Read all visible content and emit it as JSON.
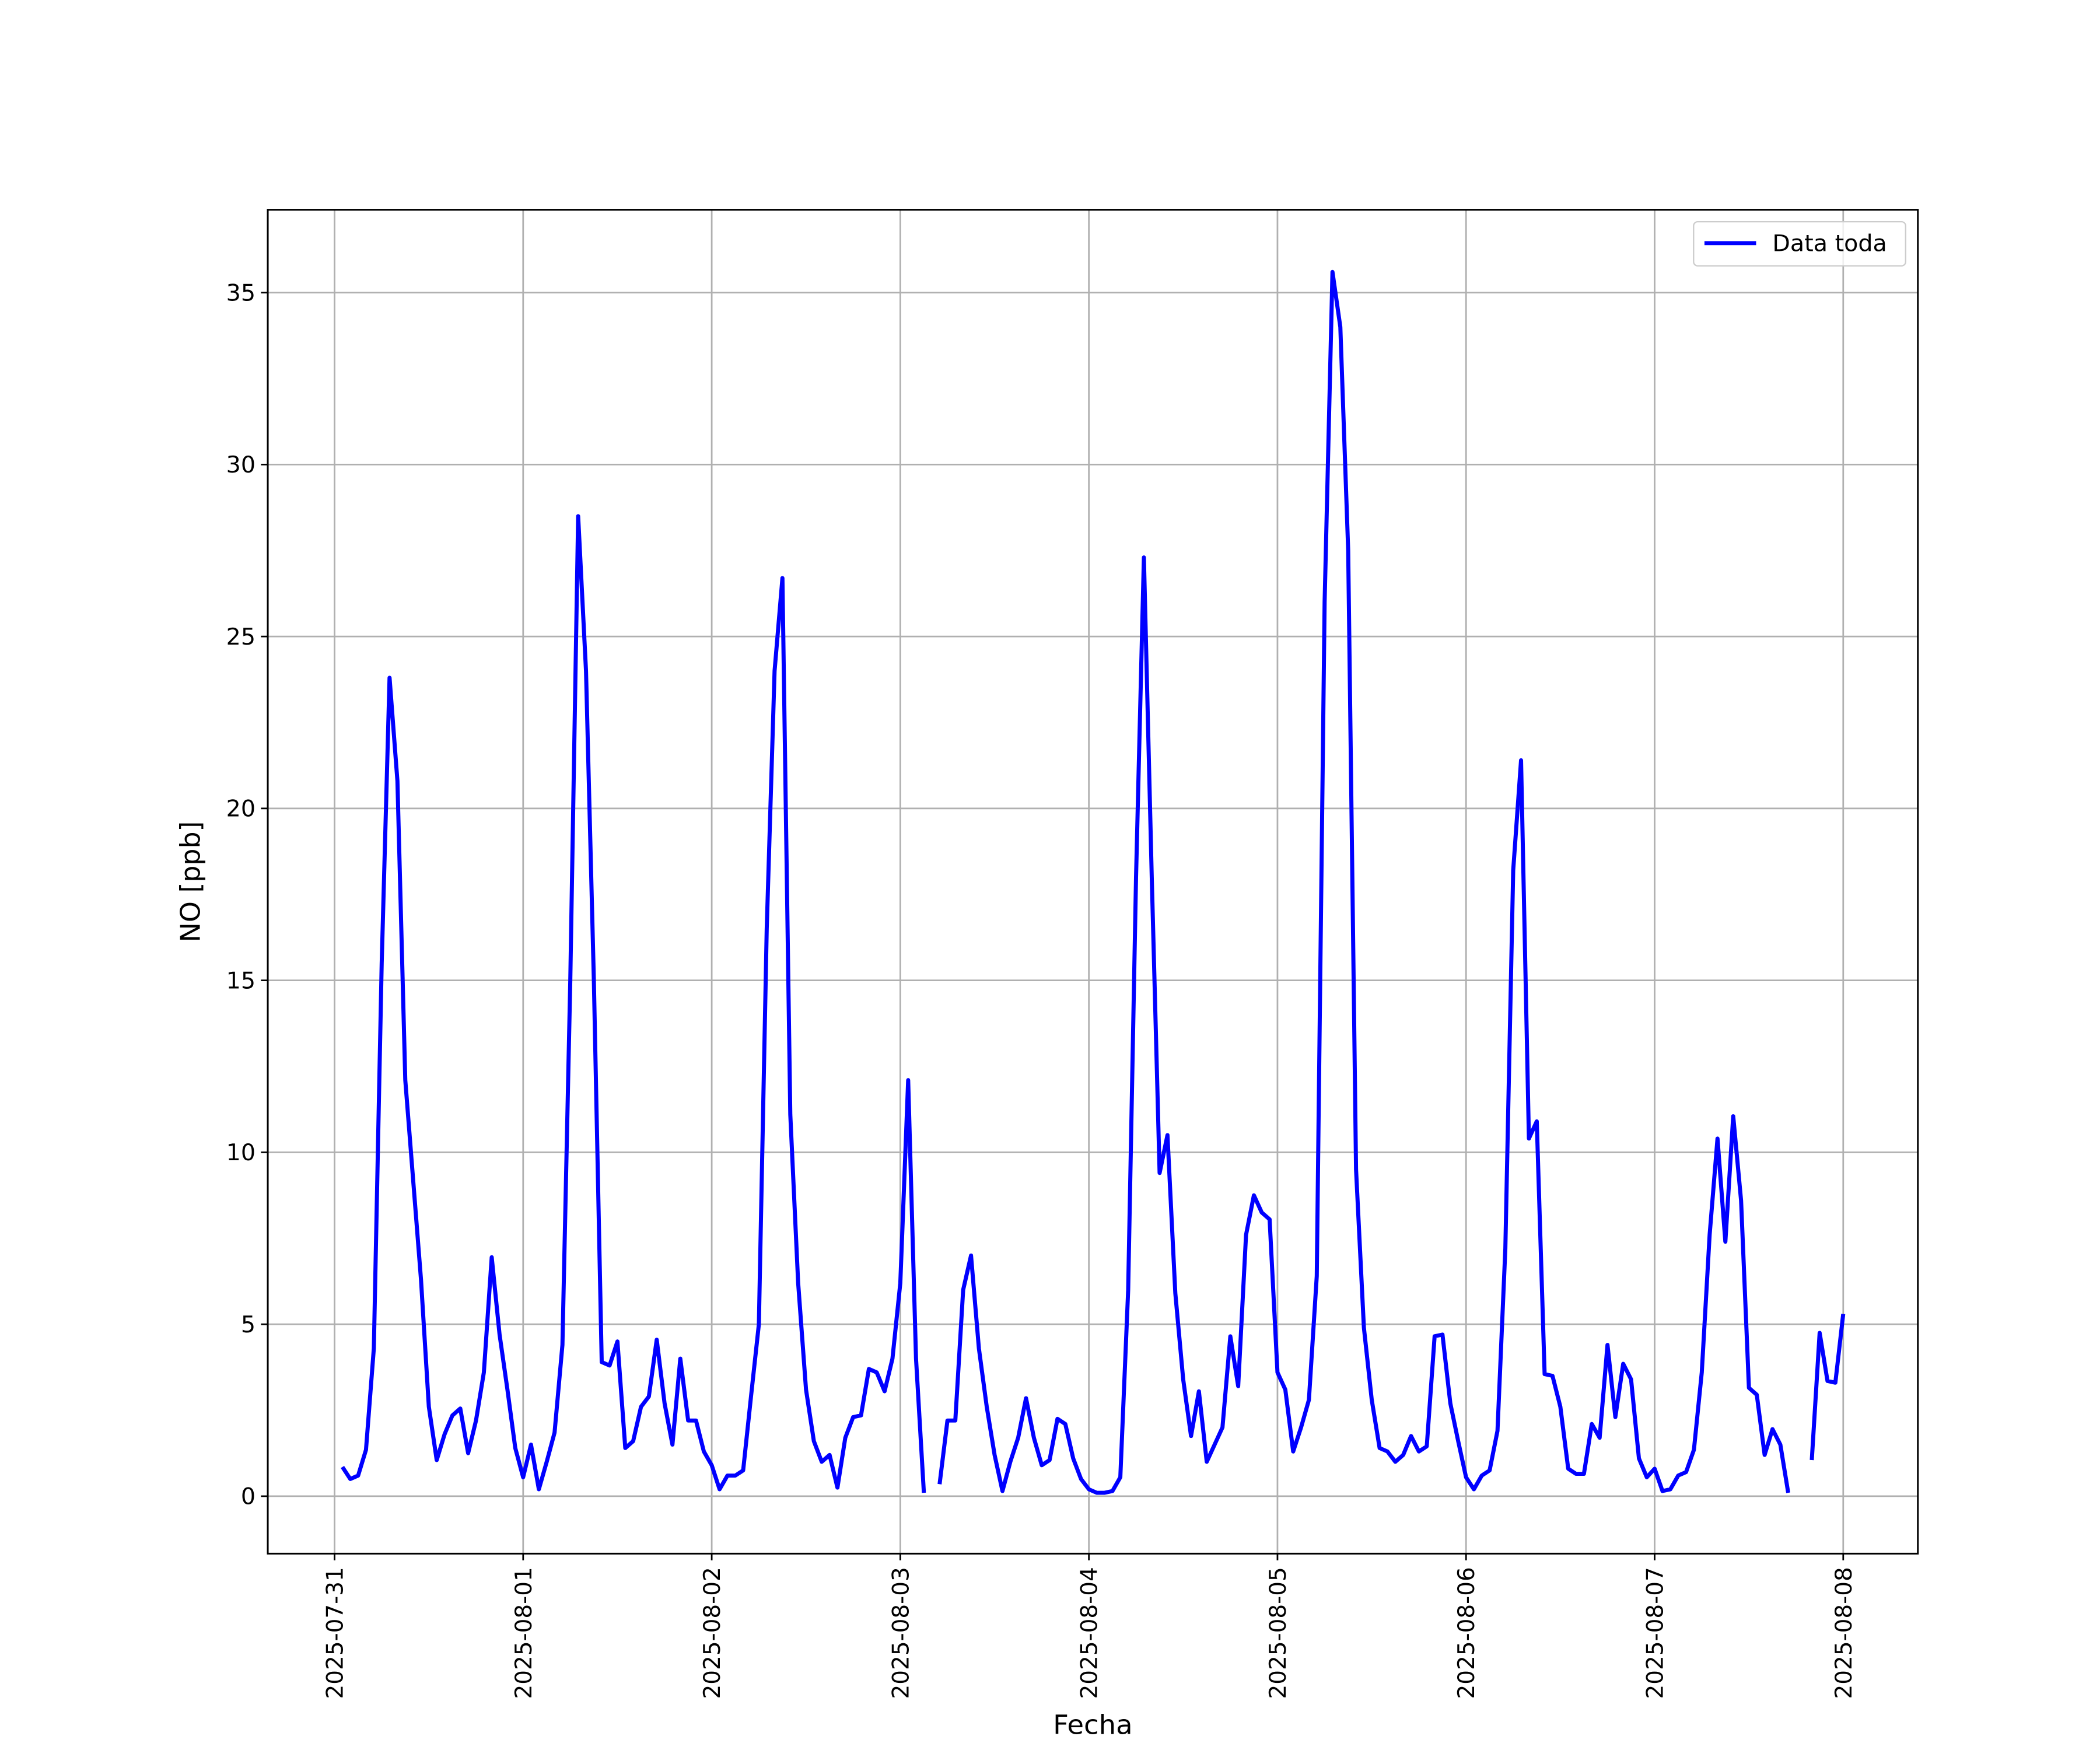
{
  "chart_data": {
    "type": "line",
    "xlabel": "Fecha",
    "ylabel": "NO [ppb]",
    "x": [
      "2025-07-31 01:00",
      "2025-07-31 02:00",
      "2025-07-31 03:00",
      "2025-07-31 04:00",
      "2025-07-31 05:00",
      "2025-07-31 06:00",
      "2025-07-31 07:00",
      "2025-07-31 08:00",
      "2025-07-31 09:00",
      "2025-07-31 10:00",
      "2025-07-31 11:00",
      "2025-07-31 12:00",
      "2025-07-31 13:00",
      "2025-07-31 14:00",
      "2025-07-31 15:00",
      "2025-07-31 16:00",
      "2025-07-31 17:00",
      "2025-07-31 18:00",
      "2025-07-31 19:00",
      "2025-07-31 20:00",
      "2025-07-31 21:00",
      "2025-07-31 22:00",
      "2025-07-31 23:00",
      "2025-08-01 00:00",
      "2025-08-01 01:00",
      "2025-08-01 02:00",
      "2025-08-01 03:00",
      "2025-08-01 04:00",
      "2025-08-01 05:00",
      "2025-08-01 06:00",
      "2025-08-01 07:00",
      "2025-08-01 08:00",
      "2025-08-01 09:00",
      "2025-08-01 10:00",
      "2025-08-01 11:00",
      "2025-08-01 12:00",
      "2025-08-01 13:00",
      "2025-08-01 14:00",
      "2025-08-01 15:00",
      "2025-08-01 16:00",
      "2025-08-01 17:00",
      "2025-08-01 18:00",
      "2025-08-01 19:00",
      "2025-08-01 20:00",
      "2025-08-01 21:00",
      "2025-08-01 22:00",
      "2025-08-01 23:00",
      "2025-08-02 00:00",
      "2025-08-02 01:00",
      "2025-08-02 02:00",
      "2025-08-02 03:00",
      "2025-08-02 04:00",
      "2025-08-02 05:00",
      "2025-08-02 06:00",
      "2025-08-02 07:00",
      "2025-08-02 08:00",
      "2025-08-02 09:00",
      "2025-08-02 10:00",
      "2025-08-02 11:00",
      "2025-08-02 12:00",
      "2025-08-02 13:00",
      "2025-08-02 14:00",
      "2025-08-02 15:00",
      "2025-08-02 16:00",
      "2025-08-02 17:00",
      "2025-08-02 18:00",
      "2025-08-02 19:00",
      "2025-08-02 20:00",
      "2025-08-02 21:00",
      "2025-08-02 22:00",
      "2025-08-02 23:00",
      "2025-08-03 00:00",
      "2025-08-03 01:00",
      "2025-08-03 02:00",
      "2025-08-03 03:00",
      "2025-08-03 04:00",
      "2025-08-03 05:00",
      "2025-08-03 06:00",
      "2025-08-03 07:00",
      "2025-08-03 08:00",
      "2025-08-03 09:00",
      "2025-08-03 10:00",
      "2025-08-03 11:00",
      "2025-08-03 12:00",
      "2025-08-03 13:00",
      "2025-08-03 14:00",
      "2025-08-03 15:00",
      "2025-08-03 16:00",
      "2025-08-03 17:00",
      "2025-08-03 18:00",
      "2025-08-03 19:00",
      "2025-08-03 20:00",
      "2025-08-03 21:00",
      "2025-08-03 22:00",
      "2025-08-03 23:00",
      "2025-08-04 00:00",
      "2025-08-04 01:00",
      "2025-08-04 02:00",
      "2025-08-04 03:00",
      "2025-08-04 04:00",
      "2025-08-04 05:00",
      "2025-08-04 06:00",
      "2025-08-04 07:00",
      "2025-08-04 08:00",
      "2025-08-04 09:00",
      "2025-08-04 10:00",
      "2025-08-04 11:00",
      "2025-08-04 12:00",
      "2025-08-04 13:00",
      "2025-08-04 14:00",
      "2025-08-04 15:00",
      "2025-08-04 16:00",
      "2025-08-04 17:00",
      "2025-08-04 18:00",
      "2025-08-04 19:00",
      "2025-08-04 20:00",
      "2025-08-04 21:00",
      "2025-08-04 22:00",
      "2025-08-04 23:00",
      "2025-08-05 00:00",
      "2025-08-05 01:00",
      "2025-08-05 02:00",
      "2025-08-05 03:00",
      "2025-08-05 04:00",
      "2025-08-05 05:00",
      "2025-08-05 06:00",
      "2025-08-05 07:00",
      "2025-08-05 08:00",
      "2025-08-05 09:00",
      "2025-08-05 10:00",
      "2025-08-05 11:00",
      "2025-08-05 12:00",
      "2025-08-05 13:00",
      "2025-08-05 14:00",
      "2025-08-05 15:00",
      "2025-08-05 16:00",
      "2025-08-05 17:00",
      "2025-08-05 18:00",
      "2025-08-05 19:00",
      "2025-08-05 20:00",
      "2025-08-05 21:00",
      "2025-08-05 22:00",
      "2025-08-05 23:00",
      "2025-08-06 00:00",
      "2025-08-06 01:00",
      "2025-08-06 02:00",
      "2025-08-06 03:00",
      "2025-08-06 04:00",
      "2025-08-06 05:00",
      "2025-08-06 06:00",
      "2025-08-06 07:00",
      "2025-08-06 08:00",
      "2025-08-06 09:00",
      "2025-08-06 10:00",
      "2025-08-06 11:00",
      "2025-08-06 12:00",
      "2025-08-06 13:00",
      "2025-08-06 14:00",
      "2025-08-06 15:00",
      "2025-08-06 16:00",
      "2025-08-06 17:00",
      "2025-08-06 18:00",
      "2025-08-06 19:00",
      "2025-08-06 20:00",
      "2025-08-06 21:00",
      "2025-08-06 22:00",
      "2025-08-06 23:00",
      "2025-08-07 00:00",
      "2025-08-07 01:00",
      "2025-08-07 02:00",
      "2025-08-07 03:00",
      "2025-08-07 04:00",
      "2025-08-07 05:00",
      "2025-08-07 06:00",
      "2025-08-07 07:00",
      "2025-08-07 08:00",
      "2025-08-07 09:00",
      "2025-08-07 10:00",
      "2025-08-07 11:00",
      "2025-08-07 12:00",
      "2025-08-07 13:00",
      "2025-08-07 14:00",
      "2025-08-07 15:00",
      "2025-08-07 16:00",
      "2025-08-07 17:00",
      "2025-08-07 18:00",
      "2025-08-07 19:00",
      "2025-08-07 20:00",
      "2025-08-07 21:00",
      "2025-08-07 22:00",
      "2025-08-07 23:00",
      "2025-08-08 00:00"
    ],
    "series": [
      {
        "name": "Data toda",
        "color": "#0000ff",
        "values": [
          0.85,
          0.5,
          0.6,
          1.35,
          4.3,
          15.5,
          23.8,
          20.8,
          12.1,
          9.2,
          6.3,
          2.6,
          1.05,
          1.8,
          2.35,
          2.55,
          1.25,
          2.2,
          3.6,
          6.95,
          4.7,
          3.1,
          1.4,
          0.55,
          1.5,
          0.2,
          1.0,
          1.85,
          4.4,
          15,
          28.5,
          24,
          15,
          3.9,
          3.8,
          4.5,
          1.4,
          1.6,
          2.6,
          2.9,
          4.55,
          2.7,
          1.5,
          4.0,
          2.2,
          2.2,
          1.3,
          0.9,
          0.2,
          0.6,
          0.6,
          0.75,
          2.9,
          5.0,
          16.5,
          24,
          26.7,
          11.1,
          6.2,
          3.1,
          1.6,
          1.0,
          1.2,
          0.25,
          1.7,
          2.3,
          2.35,
          3.7,
          3.6,
          3.05,
          4.0,
          6.2,
          12.1,
          4.0,
          0.1,
          null,
          0.35,
          2.2,
          2.2,
          6.0,
          7.0,
          4.3,
          2.6,
          1.2,
          0.15,
          1.0,
          1.7,
          2.85,
          1.7,
          0.9,
          1.05,
          2.25,
          2.1,
          1.1,
          0.5,
          0.2,
          0.1,
          0.1,
          0.15,
          0.55,
          6.0,
          18,
          27.3,
          18,
          9.4,
          10.5,
          5.9,
          3.4,
          1.75,
          3.05,
          1.0,
          1.5,
          2.0,
          4.65,
          3.2,
          7.6,
          8.75,
          8.25,
          8.05,
          3.6,
          3.1,
          1.3,
          2.0,
          2.8,
          6.4,
          26,
          35.6,
          34,
          27.5,
          9.5,
          4.9,
          2.8,
          1.4,
          1.3,
          1.0,
          1.2,
          1.75,
          1.3,
          1.45,
          4.65,
          4.7,
          2.7,
          1.6,
          0.55,
          0.2,
          0.6,
          0.75,
          1.9,
          7.2,
          18.2,
          21.4,
          10.4,
          10.9,
          3.55,
          3.5,
          2.6,
          0.8,
          0.65,
          0.65,
          2.1,
          1.7,
          4.4,
          2.3,
          3.85,
          3.4,
          1.1,
          0.55,
          0.8,
          0.15,
          0.2,
          0.6,
          0.7,
          1.35,
          3.6,
          7.6,
          10.4,
          7.4,
          11.05,
          8.6,
          3.15,
          2.95,
          1.2,
          1.95,
          1.5,
          0.1,
          null,
          null,
          1.05,
          4.75,
          3.35,
          3.3,
          5.3
        ]
      }
    ],
    "xlim": [
      "2025-07-30 15:30",
      "2025-08-08 09:30"
    ],
    "xticks": [
      "2025-07-31",
      "2025-08-01",
      "2025-08-02",
      "2025-08-03",
      "2025-08-04",
      "2025-08-05",
      "2025-08-06",
      "2025-08-07",
      "2025-08-08"
    ],
    "ylim": [
      -1.67,
      37.41
    ],
    "yticks": [
      0,
      5,
      10,
      15,
      20,
      25,
      30,
      35
    ],
    "grid": true,
    "legend": "upper right"
  }
}
